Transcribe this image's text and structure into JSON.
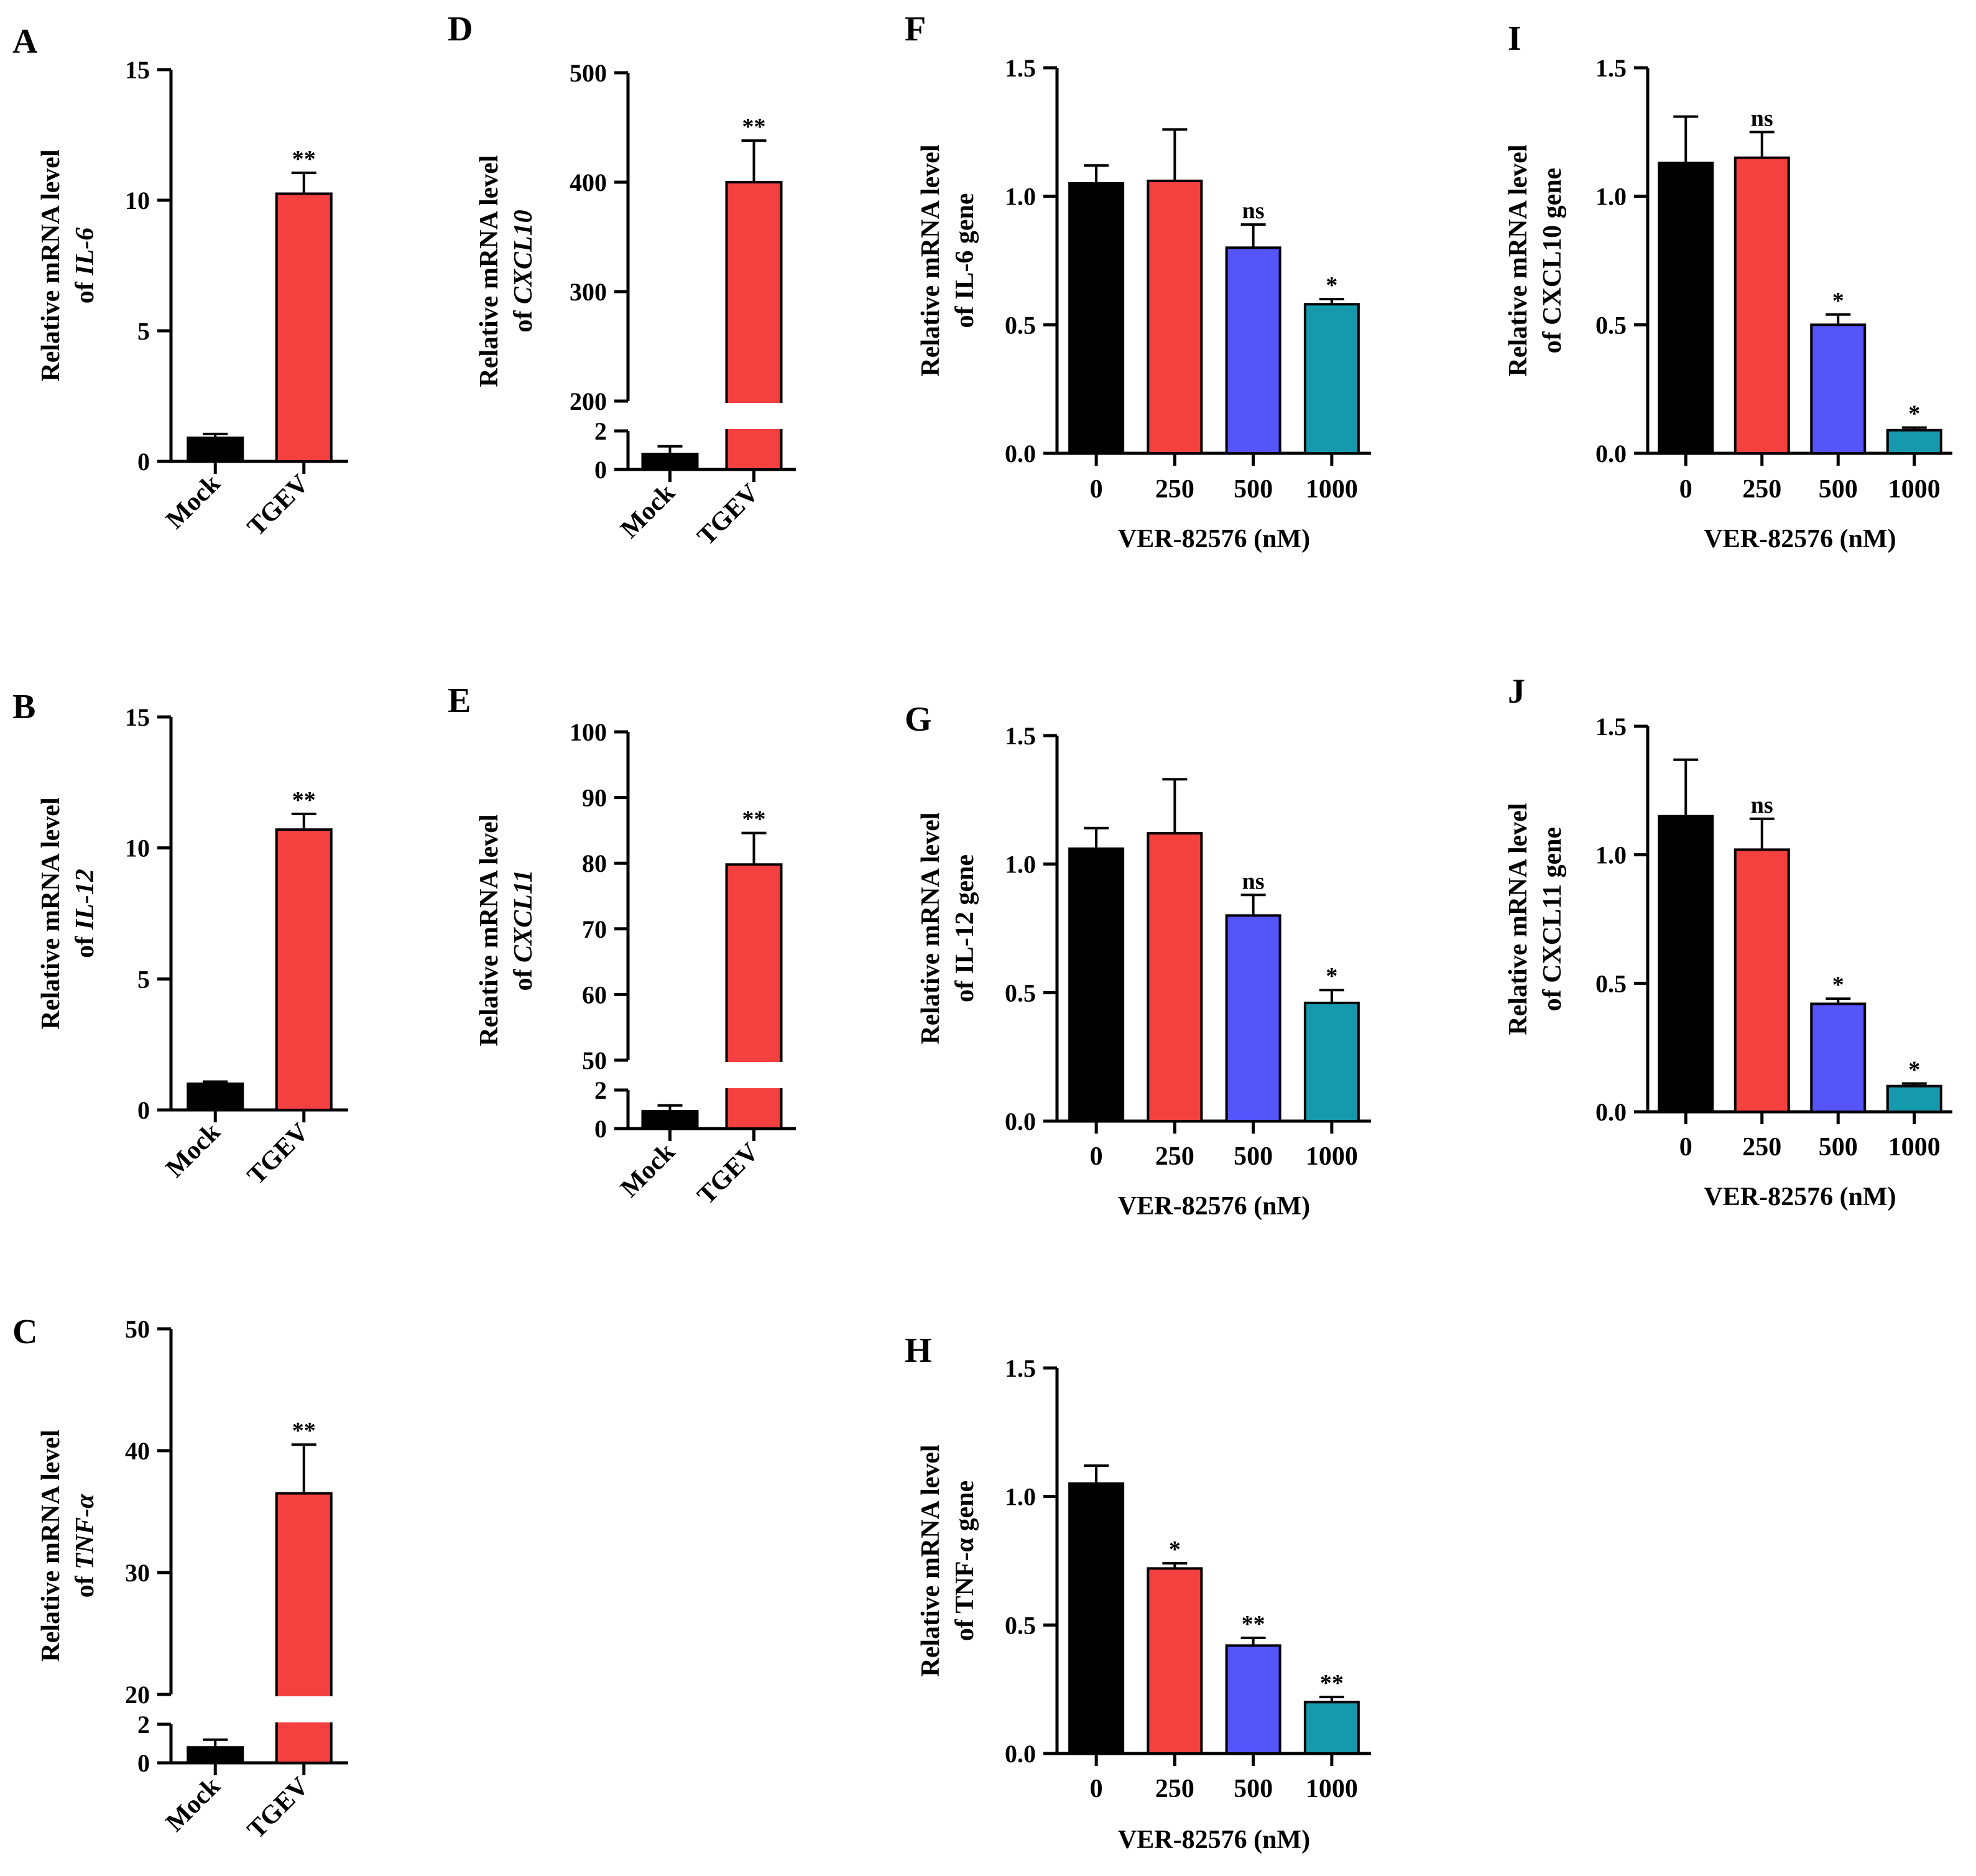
{
  "colors": {
    "mock": "#000000",
    "tgev": "#f54040",
    "c0": "#000000",
    "c250": "#f54040",
    "c500": "#5555fa",
    "c1000": "#1799ad"
  },
  "chart_data": [
    {
      "id": "A",
      "panel": "A",
      "type": "bar",
      "categories": [
        "Mock",
        "TGEV"
      ],
      "values": [
        0.9,
        10.25
      ],
      "errors": [
        0.15,
        0.8
      ],
      "significance": [
        "",
        "**"
      ],
      "ylabel_line1": "Relative mRNA level",
      "ylabel_pre": "of ",
      "ylabel_gene": "IL-6",
      "ylabel_post": "",
      "yticks": [
        "0",
        "5",
        "10",
        "15"
      ],
      "ylim": [
        0,
        15
      ]
    },
    {
      "id": "B",
      "panel": "B",
      "type": "bar",
      "categories": [
        "Mock",
        "TGEV"
      ],
      "values": [
        1.0,
        10.7
      ],
      "errors": [
        0.08,
        0.6
      ],
      "significance": [
        "",
        "**"
      ],
      "ylabel_line1": "Relative mRNA level",
      "ylabel_pre": "of ",
      "ylabel_gene": "IL-12",
      "ylabel_post": "",
      "yticks": [
        "0",
        "5",
        "10",
        "15"
      ],
      "ylim": [
        0,
        15
      ]
    },
    {
      "id": "C",
      "panel": "C",
      "type": "bar",
      "broken_axis": true,
      "categories": [
        "Mock",
        "TGEV"
      ],
      "values": [
        0.8,
        36.5
      ],
      "errors": [
        0.4,
        4.0
      ],
      "significance": [
        "",
        "**"
      ],
      "ylabel_line1": "Relative mRNA level",
      "ylabel_pre": "of ",
      "ylabel_gene": "TNF-α",
      "ylabel_post": "",
      "yticks_lower": [
        "0",
        "2"
      ],
      "yticks_upper": [
        "20",
        "30",
        "40",
        "50"
      ],
      "ylim_lower": [
        0,
        2
      ],
      "ylim_upper": [
        20,
        50
      ]
    },
    {
      "id": "D",
      "panel": "D",
      "type": "bar",
      "broken_axis": true,
      "categories": [
        "Mock",
        "TGEV"
      ],
      "values": [
        0.8,
        400
      ],
      "errors": [
        0.4,
        38
      ],
      "significance": [
        "",
        "**"
      ],
      "ylabel_line1": "Relative mRNA level",
      "ylabel_pre": "of ",
      "ylabel_gene": "CXCL10",
      "ylabel_post": "",
      "yticks_lower": [
        "0",
        "2"
      ],
      "yticks_upper": [
        "200",
        "300",
        "400",
        "500"
      ],
      "ylim_lower": [
        0,
        2
      ],
      "ylim_upper": [
        200,
        500
      ]
    },
    {
      "id": "E",
      "panel": "E",
      "type": "bar",
      "broken_axis": true,
      "categories": [
        "Mock",
        "TGEV"
      ],
      "values": [
        0.9,
        79.8
      ],
      "errors": [
        0.3,
        4.8
      ],
      "significance": [
        "",
        "**"
      ],
      "ylabel_line1": "Relative mRNA level",
      "ylabel_pre": "of ",
      "ylabel_gene": "CXCL11",
      "ylabel_post": "",
      "yticks_lower": [
        "0",
        "2"
      ],
      "yticks_upper": [
        "50",
        "60",
        "70",
        "80",
        "90",
        "100"
      ],
      "ylim_lower": [
        0,
        2
      ],
      "ylim_upper": [
        50,
        100
      ]
    },
    {
      "id": "F",
      "panel": "F",
      "type": "bar",
      "categories": [
        "0",
        "250",
        "500",
        "1000"
      ],
      "values": [
        1.05,
        1.06,
        0.8,
        0.58
      ],
      "errors": [
        0.07,
        0.2,
        0.09,
        0.02
      ],
      "significance": [
        "",
        "",
        "ns",
        "*"
      ],
      "ylabel_line1": "Relative mRNA level",
      "ylabel_pre": "of ",
      "ylabel_gene": "IL-6",
      "ylabel_post": " gene",
      "xlabel": "VER-82576 (nM)",
      "yticks": [
        "0.0",
        "0.5",
        "1.0",
        "1.5"
      ],
      "ylim": [
        0,
        1.5
      ]
    },
    {
      "id": "G",
      "panel": "G",
      "type": "bar",
      "categories": [
        "0",
        "250",
        "500",
        "1000"
      ],
      "values": [
        1.06,
        1.12,
        0.8,
        0.46
      ],
      "errors": [
        0.08,
        0.21,
        0.08,
        0.05
      ],
      "significance": [
        "",
        "",
        "ns",
        "*"
      ],
      "ylabel_line1": "Relative mRNA level",
      "ylabel_pre": "of ",
      "ylabel_gene": "IL-12",
      "ylabel_post": " gene",
      "xlabel": "VER-82576 (nM)",
      "yticks": [
        "0.0",
        "0.5",
        "1.0",
        "1.5"
      ],
      "ylim": [
        0,
        1.5
      ]
    },
    {
      "id": "H",
      "panel": "H",
      "type": "bar",
      "categories": [
        "0",
        "250",
        "500",
        "1000"
      ],
      "values": [
        1.05,
        0.72,
        0.42,
        0.2
      ],
      "errors": [
        0.07,
        0.02,
        0.03,
        0.02
      ],
      "significance": [
        "",
        "*",
        "**",
        "**"
      ],
      "ylabel_line1": "Relative mRNA level",
      "ylabel_pre": "of ",
      "ylabel_gene": "TNF-α",
      "ylabel_post": " gene",
      "xlabel": "VER-82576 (nM)",
      "yticks": [
        "0.0",
        "0.5",
        "1.0",
        "1.5"
      ],
      "ylim": [
        0,
        1.5
      ]
    },
    {
      "id": "I",
      "panel": "I",
      "type": "bar",
      "categories": [
        "0",
        "250",
        "500",
        "1000"
      ],
      "values": [
        1.13,
        1.15,
        0.5,
        0.09
      ],
      "errors": [
        0.18,
        0.1,
        0.04,
        0.01
      ],
      "significance": [
        "",
        "ns",
        "*",
        "*"
      ],
      "ylabel_line1": "Relative mRNA level",
      "ylabel_pre": "of ",
      "ylabel_gene": "CXCL10",
      "ylabel_post": " gene",
      "xlabel": "VER-82576 (nM)",
      "yticks": [
        "0.0",
        "0.5",
        "1.0",
        "1.5"
      ],
      "ylim": [
        0,
        1.5
      ]
    },
    {
      "id": "J",
      "panel": "J",
      "type": "bar",
      "categories": [
        "0",
        "250",
        "500",
        "1000"
      ],
      "values": [
        1.15,
        1.02,
        0.42,
        0.1
      ],
      "errors": [
        0.22,
        0.12,
        0.02,
        0.01
      ],
      "significance": [
        "",
        "ns",
        "*",
        "*"
      ],
      "ylabel_line1": "Relative mRNA level",
      "ylabel_pre": "of ",
      "ylabel_gene": "CXCL11",
      "ylabel_post": " gene",
      "xlabel": "VER-82576 (nM)",
      "yticks": [
        "0.0",
        "0.5",
        "1.0",
        "1.5"
      ],
      "ylim": [
        0,
        1.5
      ]
    }
  ]
}
